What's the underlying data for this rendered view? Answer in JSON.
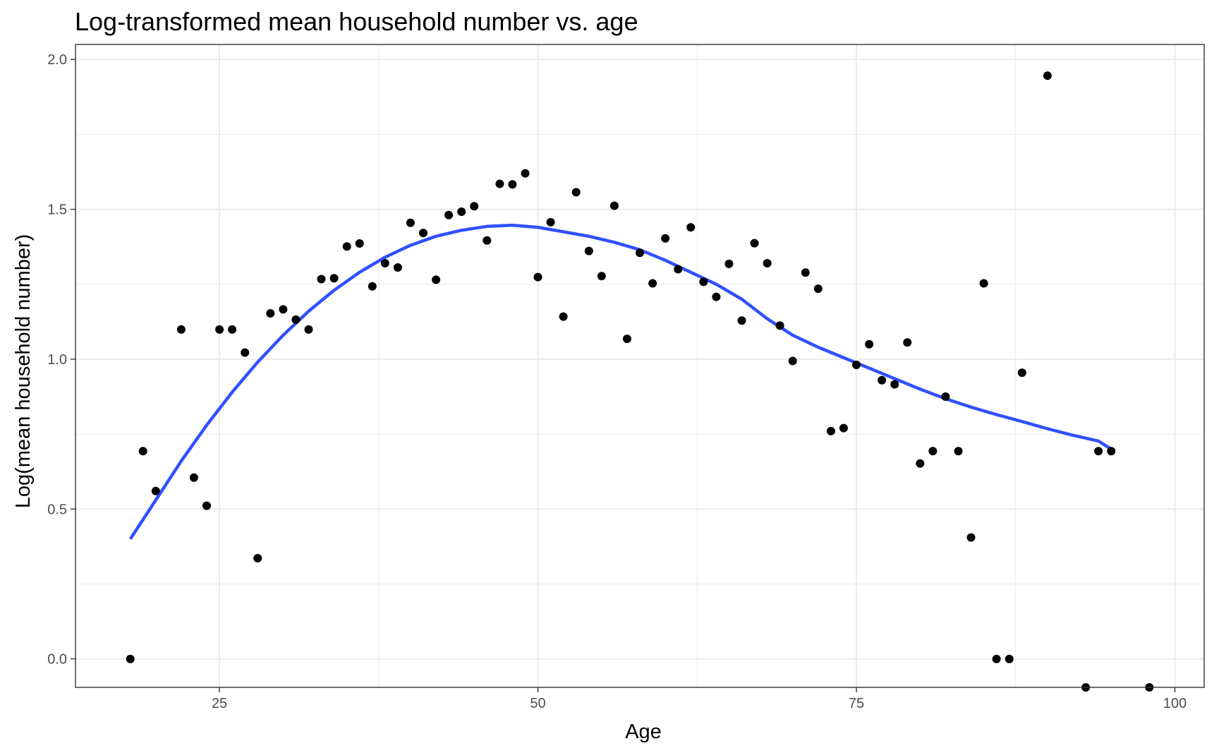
{
  "chart_data": {
    "type": "scatter",
    "title": "Log-transformed mean household number vs. age",
    "xlabel": "Age",
    "ylabel": "Log(mean household number)",
    "xlim": [
      13.7,
      102.3
    ],
    "ylim": [
      -0.095,
      2.05
    ],
    "x_ticks": [
      25,
      50,
      75,
      100
    ],
    "x_tick_labels": [
      "25",
      "50",
      "75",
      "100"
    ],
    "y_ticks": [
      0.0,
      0.5,
      1.0,
      1.5,
      2.0
    ],
    "y_tick_labels": [
      "0.0",
      "0.5",
      "1.0",
      "1.5",
      "2.0"
    ],
    "grid": true,
    "colors": {
      "points": "#000000",
      "smooth": "#3050ff",
      "grid": "#ebebeb",
      "panel_border": "#333333"
    },
    "series": [
      {
        "kind": "points",
        "x": [
          18,
          19,
          20,
          22,
          23,
          24,
          25,
          26,
          27,
          28,
          29,
          30,
          31,
          32,
          33,
          34,
          35,
          36,
          37,
          38,
          39,
          40,
          41,
          42,
          43,
          44,
          45,
          46,
          47,
          48,
          49,
          50,
          51,
          52,
          53,
          54,
          55,
          56,
          57,
          58,
          59,
          60,
          61,
          62,
          63,
          64,
          65,
          66,
          67,
          68,
          69,
          70,
          71,
          72,
          73,
          74,
          75,
          76,
          77,
          78,
          79,
          80,
          81,
          82,
          83,
          84,
          85,
          86,
          87,
          88,
          90,
          93,
          94,
          95,
          98
        ],
        "y": [
          0.0,
          0.693,
          0.56,
          1.099,
          0.605,
          0.511,
          1.099,
          1.099,
          1.022,
          0.336,
          1.153,
          1.166,
          1.132,
          1.099,
          1.267,
          1.27,
          1.376,
          1.386,
          1.243,
          1.32,
          1.306,
          1.455,
          1.421,
          1.265,
          1.481,
          1.492,
          1.51,
          1.396,
          1.585,
          1.583,
          1.62,
          1.274,
          1.457,
          1.142,
          1.557,
          1.361,
          1.277,
          1.512,
          1.068,
          1.355,
          1.253,
          1.403,
          1.3,
          1.44,
          1.258,
          1.208,
          1.318,
          1.129,
          1.387,
          1.32,
          1.112,
          0.994,
          1.289,
          1.235,
          0.76,
          0.77,
          0.981,
          1.05,
          0.93,
          0.916,
          1.056,
          0.652,
          0.693,
          0.875,
          0.693,
          0.405,
          1.253,
          0.0,
          0.0,
          0.955,
          1.946,
          -0.095,
          0.693,
          0.693,
          -0.095
        ]
      },
      {
        "kind": "smooth",
        "x": [
          18,
          20,
          22,
          24,
          26,
          28,
          30,
          32,
          34,
          36,
          38,
          40,
          42,
          44,
          46,
          48,
          50,
          52,
          54,
          56,
          58,
          60,
          62,
          64,
          66,
          68,
          70,
          72,
          74,
          76,
          78,
          80,
          82,
          84,
          86,
          88,
          90,
          92,
          94,
          95
        ],
        "y": [
          0.4,
          0.53,
          0.66,
          0.78,
          0.89,
          0.99,
          1.08,
          1.16,
          1.23,
          1.29,
          1.34,
          1.38,
          1.41,
          1.43,
          1.443,
          1.447,
          1.44,
          1.425,
          1.41,
          1.39,
          1.365,
          1.33,
          1.29,
          1.25,
          1.2,
          1.135,
          1.08,
          1.04,
          1.005,
          0.97,
          0.935,
          0.9,
          0.868,
          0.84,
          0.815,
          0.792,
          0.768,
          0.746,
          0.727,
          0.7
        ]
      }
    ]
  }
}
